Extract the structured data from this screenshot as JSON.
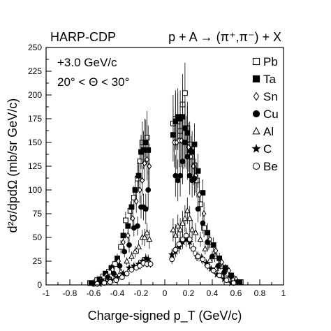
{
  "chart_data": {
    "type": "scatter",
    "title_left": "HARP-CDP",
    "title_right": "p + A → (π⁺,π⁻) + X",
    "annotations": [
      "+3.0 GeV/c",
      "20° < Θ < 30°"
    ],
    "xlabel": "Charge-signed p_T (GeV/c)",
    "ylabel": "d²σ/dpdΩ (mb/sr GeV/c)",
    "xlim": [
      -1,
      1
    ],
    "ylim": [
      0,
      250
    ],
    "xticks": [
      -1,
      -0.8,
      -0.6,
      -0.4,
      -0.2,
      0,
      0.2,
      0.4,
      0.6,
      0.8,
      1
    ],
    "xtick_labels": [
      "-1",
      "-0.8",
      "-0.6",
      "-0.4",
      "-0.2",
      "0",
      "0.2",
      "0.4",
      "0.6",
      "0.8",
      "1"
    ],
    "yticks": [
      0,
      25,
      50,
      75,
      100,
      125,
      150,
      175,
      200,
      225,
      250
    ],
    "ytick_labels": [
      "0",
      "25",
      "50",
      "75",
      "100",
      "125",
      "150",
      "175",
      "200",
      "225",
      "250"
    ],
    "legend_position": "top-right",
    "series": [
      {
        "name": "Pb",
        "marker": "open-square",
        "x": [
          -0.63,
          -0.57,
          -0.52,
          -0.47,
          -0.42,
          -0.37,
          -0.33,
          -0.29,
          -0.26,
          -0.23,
          -0.21,
          -0.19,
          -0.17,
          -0.15,
          0.07,
          0.09,
          0.11,
          0.13,
          0.15,
          0.17,
          0.19,
          0.21,
          0.23,
          0.25,
          0.27,
          0.3,
          0.33,
          0.37,
          0.42,
          0.47,
          0.52,
          0.57,
          0.64
        ],
        "y": [
          2,
          5,
          9,
          14,
          22,
          40,
          68,
          78,
          92,
          112,
          130,
          150,
          150,
          155,
          170,
          175,
          172,
          162,
          190,
          202,
          165,
          148,
          135,
          126,
          110,
          85,
          60,
          45,
          30,
          20,
          12,
          7,
          3
        ],
        "err": [
          2,
          2,
          3,
          4,
          5,
          7,
          9,
          10,
          12,
          15,
          18,
          22,
          25,
          28,
          30,
          30,
          30,
          30,
          32,
          32,
          28,
          24,
          22,
          20,
          18,
          13,
          10,
          8,
          6,
          4,
          3,
          2,
          2
        ]
      },
      {
        "name": "Ta",
        "marker": "filled-square",
        "x": [
          -0.62,
          -0.55,
          -0.5,
          -0.45,
          -0.4,
          -0.35,
          -0.31,
          -0.28,
          -0.25,
          -0.22,
          -0.2,
          -0.18,
          -0.16,
          -0.14,
          0.07,
          0.09,
          0.11,
          0.13,
          0.15,
          0.17,
          0.19,
          0.21,
          0.23,
          0.25,
          0.28,
          0.32,
          0.36,
          0.41,
          0.46,
          0.51,
          0.56,
          0.63
        ],
        "y": [
          2,
          6,
          12,
          18,
          28,
          52,
          62,
          82,
          100,
          115,
          140,
          142,
          150,
          142,
          158,
          172,
          177,
          175,
          177,
          165,
          160,
          142,
          140,
          148,
          120,
          97,
          55,
          42,
          28,
          18,
          10,
          3
        ],
        "err": [
          2,
          2,
          3,
          4,
          5,
          7,
          9,
          10,
          12,
          14,
          18,
          20,
          24,
          26,
          28,
          30,
          30,
          30,
          30,
          30,
          28,
          24,
          22,
          22,
          18,
          14,
          10,
          8,
          6,
          4,
          3,
          2
        ]
      },
      {
        "name": "Sn",
        "marker": "open-diamond",
        "x": [
          -0.6,
          -0.54,
          -0.49,
          -0.44,
          -0.39,
          -0.35,
          -0.31,
          -0.27,
          -0.24,
          -0.21,
          -0.19,
          -0.17,
          -0.15,
          -0.13,
          0.08,
          0.1,
          0.12,
          0.14,
          0.16,
          0.18,
          0.2,
          0.22,
          0.24,
          0.26,
          0.29,
          0.33,
          0.38,
          0.43,
          0.48,
          0.54,
          0.6
        ],
        "y": [
          2,
          5,
          10,
          16,
          25,
          45,
          52,
          70,
          88,
          100,
          110,
          128,
          132,
          125,
          150,
          150,
          152,
          152,
          150,
          150,
          145,
          135,
          125,
          115,
          95,
          75,
          48,
          36,
          24,
          15,
          6
        ],
        "err": [
          2,
          2,
          3,
          4,
          5,
          7,
          8,
          10,
          12,
          14,
          16,
          18,
          22,
          24,
          26,
          28,
          28,
          28,
          28,
          28,
          26,
          22,
          20,
          18,
          15,
          12,
          9,
          7,
          5,
          4,
          2
        ]
      },
      {
        "name": "Cu",
        "marker": "filled-circle",
        "x": [
          -0.6,
          -0.53,
          -0.48,
          -0.43,
          -0.38,
          -0.34,
          -0.3,
          -0.26,
          -0.23,
          -0.2,
          -0.18,
          -0.16,
          -0.14,
          0.09,
          0.11,
          0.13,
          0.15,
          0.17,
          0.19,
          0.21,
          0.23,
          0.25,
          0.28,
          0.32,
          0.36,
          0.4,
          0.45,
          0.5,
          0.55,
          0.61
        ],
        "y": [
          1,
          4,
          8,
          12,
          20,
          35,
          42,
          60,
          62,
          82,
          82,
          80,
          100,
          115,
          110,
          115,
          130,
          150,
          135,
          115,
          110,
          112,
          80,
          65,
          45,
          30,
          20,
          13,
          8,
          3
        ],
        "err": [
          1,
          2,
          3,
          4,
          5,
          6,
          8,
          9,
          10,
          12,
          14,
          16,
          20,
          22,
          22,
          22,
          24,
          26,
          24,
          20,
          18,
          18,
          14,
          11,
          8,
          6,
          5,
          3,
          2,
          2
        ]
      },
      {
        "name": "Al",
        "marker": "open-triangle",
        "x": [
          -0.58,
          -0.52,
          -0.46,
          -0.41,
          -0.37,
          -0.32,
          -0.28,
          -0.25,
          -0.22,
          -0.19,
          -0.17,
          -0.15,
          -0.13,
          0.07,
          0.09,
          0.11,
          0.13,
          0.15,
          0.17,
          0.19,
          0.21,
          0.23,
          0.26,
          0.3,
          0.34,
          0.38,
          0.43,
          0.48,
          0.54,
          0.59
        ],
        "y": [
          1,
          3,
          6,
          9,
          14,
          25,
          30,
          35,
          40,
          50,
          50,
          55,
          48,
          58,
          52,
          62,
          58,
          65,
          70,
          78,
          70,
          58,
          55,
          48,
          38,
          26,
          17,
          10,
          6,
          3
        ],
        "err": [
          1,
          1,
          2,
          3,
          3,
          4,
          5,
          6,
          7,
          8,
          9,
          10,
          10,
          12,
          12,
          12,
          12,
          13,
          14,
          14,
          13,
          11,
          10,
          8,
          6,
          5,
          3,
          2,
          2,
          1
        ]
      },
      {
        "name": "C",
        "marker": "star",
        "x": [
          -0.55,
          -0.5,
          -0.45,
          -0.4,
          -0.35,
          -0.3,
          -0.26,
          -0.22,
          -0.19,
          -0.16,
          -0.14,
          0.06,
          0.09,
          0.12,
          0.15,
          0.18,
          0.21,
          0.24,
          0.27,
          0.31,
          0.35,
          0.39,
          0.44,
          0.5,
          0.56
        ],
        "y": [
          1,
          3,
          5,
          8,
          12,
          18,
          20,
          22,
          25,
          28,
          27,
          32,
          35,
          40,
          45,
          48,
          45,
          38,
          30,
          28,
          23,
          17,
          11,
          6,
          2
        ],
        "err": [
          1,
          1,
          1,
          2,
          2,
          3,
          3,
          4,
          4,
          5,
          5,
          6,
          6,
          7,
          7,
          8,
          7,
          6,
          5,
          5,
          4,
          3,
          2,
          2,
          1
        ]
      },
      {
        "name": "Be",
        "marker": "open-circle",
        "x": [
          -0.57,
          -0.51,
          -0.46,
          -0.41,
          -0.36,
          -0.32,
          -0.28,
          -0.24,
          -0.21,
          -0.18,
          -0.15,
          -0.12,
          0.06,
          0.09,
          0.12,
          0.15,
          0.18,
          0.21,
          0.24,
          0.28,
          0.32,
          0.36,
          0.41,
          0.46,
          0.52,
          0.58
        ],
        "y": [
          1,
          2,
          3,
          5,
          8,
          12,
          16,
          18,
          20,
          23,
          22,
          22,
          27,
          37,
          43,
          48,
          52,
          48,
          38,
          30,
          27,
          20,
          15,
          10,
          5,
          2
        ],
        "err": [
          1,
          1,
          1,
          1,
          2,
          2,
          3,
          3,
          4,
          4,
          4,
          4,
          5,
          6,
          7,
          7,
          8,
          7,
          6,
          5,
          5,
          4,
          3,
          2,
          1,
          1
        ]
      }
    ]
  }
}
